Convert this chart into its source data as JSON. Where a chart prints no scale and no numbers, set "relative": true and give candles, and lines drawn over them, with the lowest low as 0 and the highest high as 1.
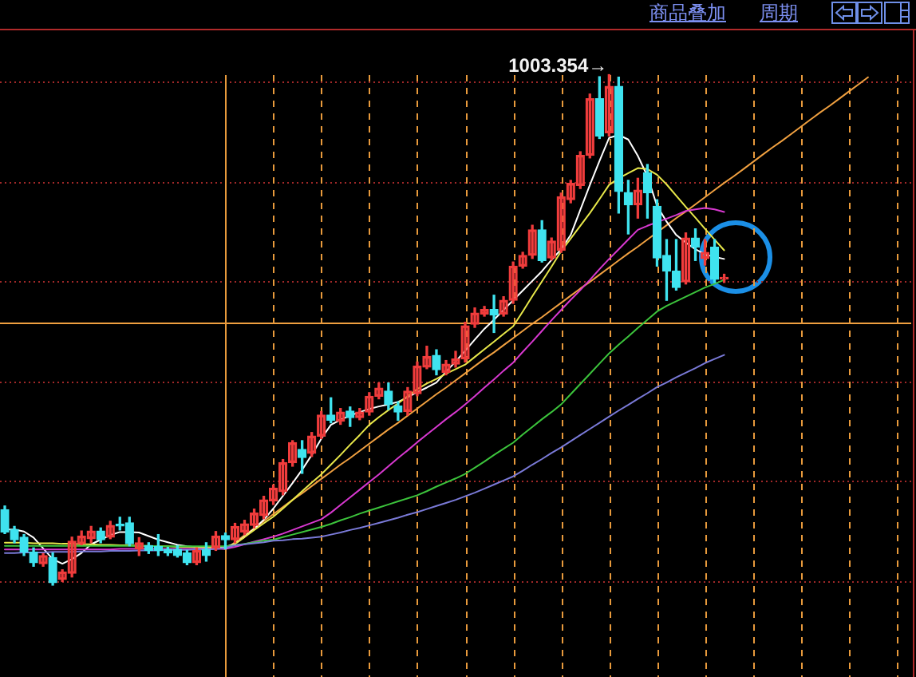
{
  "chart_data": {
    "type": "candlestick",
    "relative": true,
    "grid": "x",
    "categories": [
      null,
      null,
      null,
      null,
      null,
      null,
      null,
      null,
      null,
      null,
      null,
      null,
      null,
      null,
      null,
      null,
      null,
      null,
      null,
      null,
      null,
      null,
      null,
      null,
      null,
      null,
      null,
      null,
      null,
      null,
      null,
      null,
      null,
      null,
      null,
      null,
      null,
      null,
      null,
      null,
      null,
      null,
      null,
      null,
      null,
      null,
      null,
      null,
      null,
      null,
      null,
      null,
      null,
      null,
      null,
      null,
      null,
      null,
      null,
      null,
      null,
      null,
      null,
      null,
      null,
      null,
      null,
      null,
      null,
      null,
      null,
      null,
      null,
      null,
      null,
      null,
      null,
      null,
      null,
      null,
      null,
      null,
      null,
      null,
      null,
      null,
      null,
      null,
      null,
      null,
      null,
      null,
      null,
      null,
      null
    ],
    "ohlc": [
      [
        0.148,
        0.155,
        0.101,
        0.104
      ],
      [
        0.109,
        0.115,
        0.083,
        0.089
      ],
      [
        0.094,
        0.099,
        0.058,
        0.065
      ],
      [
        0.065,
        0.073,
        0.037,
        0.044
      ],
      [
        0.042,
        0.062,
        0.037,
        0.058
      ],
      [
        0.054,
        0.063,
        0,
        0.005
      ],
      [
        0.011,
        0.03,
        0.007,
        0.026
      ],
      [
        0.023,
        0.094,
        0.016,
        0.086
      ],
      [
        0.081,
        0.106,
        0.079,
        0.096
      ],
      [
        0.091,
        0.115,
        0.083,
        0.106
      ],
      [
        0.106,
        0.112,
        0.083,
        0.089
      ],
      [
        0.094,
        0.125,
        0.091,
        0.117
      ],
      [
        0.119,
        0.133,
        0.108,
        0.116
      ],
      [
        0.122,
        0.133,
        0.077,
        0.081
      ],
      [
        0.071,
        0.093,
        0.058,
        0.083
      ],
      [
        0.077,
        0.083,
        0.062,
        0.068
      ],
      [
        0.076,
        0.099,
        0.058,
        0.068
      ],
      [
        0.07,
        0.074,
        0.058,
        0.063
      ],
      [
        0.07,
        0.077,
        0.055,
        0.058
      ],
      [
        0.063,
        0.068,
        0.04,
        0.044
      ],
      [
        0.044,
        0.073,
        0.04,
        0.068
      ],
      [
        0.07,
        0.083,
        0.047,
        0.058
      ],
      [
        0.073,
        0.105,
        0.068,
        0.096
      ],
      [
        0.097,
        0.102,
        0.071,
        0.089
      ],
      [
        0.089,
        0.121,
        0.083,
        0.115
      ],
      [
        0.104,
        0.127,
        0.099,
        0.12
      ],
      [
        0.117,
        0.149,
        0.112,
        0.141
      ],
      [
        0.136,
        0.174,
        0.13,
        0.167
      ],
      [
        0.165,
        0.196,
        0.158,
        0.19
      ],
      [
        0.183,
        0.246,
        0.177,
        0.24
      ],
      [
        0.24,
        0.283,
        0.233,
        0.279
      ],
      [
        0.266,
        0.283,
        0.219,
        0.25
      ],
      [
        0.258,
        0.299,
        0.252,
        0.292
      ],
      [
        0.292,
        0.34,
        0.287,
        0.333
      ],
      [
        0.333,
        0.367,
        0.318,
        0.323
      ],
      [
        0.321,
        0.346,
        0.315,
        0.339
      ],
      [
        0.341,
        0.349,
        0.311,
        0.328
      ],
      [
        0.328,
        0.346,
        0.324,
        0.339
      ],
      [
        0.339,
        0.377,
        0.333,
        0.37
      ],
      [
        0.37,
        0.396,
        0.365,
        0.386
      ],
      [
        0.38,
        0.396,
        0.344,
        0.354
      ],
      [
        0.351,
        0.359,
        0.323,
        0.339
      ],
      [
        0.34,
        0.387,
        0.333,
        0.38
      ],
      [
        0.375,
        0.437,
        0.371,
        0.429
      ],
      [
        0.427,
        0.468,
        0.424,
        0.448
      ],
      [
        0.45,
        0.461,
        0.412,
        0.422
      ],
      [
        0.417,
        0.44,
        0.412,
        0.433
      ],
      [
        0.433,
        0.458,
        0.427,
        0.443
      ],
      [
        0.443,
        0.515,
        0.437,
        0.508
      ],
      [
        0.511,
        0.543,
        0.505,
        0.533
      ],
      [
        0.531,
        0.546,
        0.527,
        0.54
      ],
      [
        0.54,
        0.568,
        0.495,
        0.529
      ],
      [
        0.531,
        0.565,
        0.527,
        0.558
      ],
      [
        0.558,
        0.633,
        0.552,
        0.625
      ],
      [
        0.625,
        0.652,
        0.621,
        0.646
      ],
      [
        0.646,
        0.705,
        0.64,
        0.696
      ],
      [
        0.696,
        0.714,
        0.633,
        0.636
      ],
      [
        0.641,
        0.68,
        0.637,
        0.674
      ],
      [
        0.656,
        0.768,
        0.652,
        0.761
      ],
      [
        0.755,
        0.793,
        0.749,
        0.787
      ],
      [
        0.783,
        0.849,
        0.777,
        0.842
      ],
      [
        0.842,
        0.962,
        0.837,
        0.953
      ],
      [
        0.953,
        0.996,
        0.875,
        0.88
      ],
      [
        0.886,
        1,
        0.88,
        0.977
      ],
      [
        0.977,
        0.995,
        0.729,
        0.771
      ],
      [
        0.769,
        0.793,
        0.688,
        0.745
      ],
      [
        0.745,
        0.797,
        0.719,
        0.774
      ],
      [
        0.808,
        0.824,
        0.719,
        0.769
      ],
      [
        0.742,
        0.755,
        0.625,
        0.641
      ],
      [
        0.646,
        0.677,
        0.558,
        0.615
      ],
      [
        0.615,
        0.677,
        0.578,
        0.583
      ],
      [
        0.594,
        0.69,
        0.59,
        0.68
      ],
      [
        0.68,
        0.698,
        0.636,
        0.662
      ],
      [
        0.64,
        0.677,
        0.627,
        0.652
      ],
      [
        0.662,
        0.677,
        0.593,
        0.599
      ],
      [
        0.6,
        0.609,
        0.593,
        0.602
      ],
      null,
      null,
      null,
      null,
      null,
      null,
      null,
      null,
      null,
      null,
      null,
      null,
      null,
      null,
      null,
      null,
      null,
      null,
      null
    ],
    "colors": [
      "#3fe3ef",
      "#3fe3ef",
      "#3fe3ef",
      "#3fe3ef",
      "#f03c3c",
      "#3fe3ef",
      "#f03c3c",
      "#f03c3c",
      "#f03c3c",
      "#f03c3c",
      "#3fe3ef",
      "#f03c3c",
      "#3fe3ef",
      "#3fe3ef",
      "#f03c3c",
      "#3fe3ef",
      "#3fe3ef",
      "#3fe3ef",
      "#3fe3ef",
      "#3fe3ef",
      "#f03c3c",
      "#3fe3ef",
      "#f03c3c",
      "#3fe3ef",
      "#f03c3c",
      "#f03c3c",
      "#f03c3c",
      "#f03c3c",
      "#f03c3c",
      "#f03c3c",
      "#f03c3c",
      "#3fe3ef",
      "#f03c3c",
      "#f03c3c",
      "#3fe3ef",
      "#f03c3c",
      "#3fe3ef",
      "#f03c3c",
      "#f03c3c",
      "#f03c3c",
      "#3fe3ef",
      "#3fe3ef",
      "#f03c3c",
      "#f03c3c",
      "#f03c3c",
      "#3fe3ef",
      "#f03c3c",
      "#f03c3c",
      "#f03c3c",
      "#f03c3c",
      "#f03c3c",
      "#3fe3ef",
      "#f03c3c",
      "#f03c3c",
      "#f03c3c",
      "#f03c3c",
      "#3fe3ef",
      "#f03c3c",
      "#f03c3c",
      "#f03c3c",
      "#f03c3c",
      "#f03c3c",
      "#3fe3ef",
      "#f03c3c",
      "#3fe3ef",
      "#3fe3ef",
      "#f03c3c",
      "#3fe3ef",
      "#3fe3ef",
      "#3fe3ef",
      "#3fe3ef",
      "#f03c3c",
      "#3fe3ef",
      "#f03c3c",
      "#3fe3ef",
      "#f03c3c",
      null,
      null,
      null,
      null,
      null,
      null,
      null,
      null,
      null,
      null,
      null,
      null,
      null,
      null,
      null,
      null,
      null,
      null,
      null
    ],
    "series": [
      {
        "type": "line",
        "color": "#7a7ad8",
        "values": [
          0.063,
          0.063,
          0.064,
          0.064,
          0.064,
          0.065,
          0.065,
          0.065,
          0.066,
          0.066,
          0.066,
          0.067,
          0.067,
          0.067,
          0.068,
          0.068,
          0.068,
          0.069,
          0.069,
          0.069,
          0.07,
          0.07,
          0.071,
          0.073,
          0.078,
          0.08,
          0.082,
          0.084,
          0.087,
          0.088,
          0.09,
          0.091,
          0.093,
          0.095,
          0.099,
          0.103,
          0.108,
          0.112,
          0.117,
          0.122,
          0.127,
          0.132,
          0.138,
          0.143,
          0.149,
          0.155,
          0.161,
          0.167,
          0.174,
          0.181,
          0.189,
          0.197,
          0.205,
          0.213,
          0.224,
          0.236,
          0.247,
          0.259,
          0.27,
          0.282,
          0.294,
          0.306,
          0.318,
          0.33,
          0.342,
          0.353,
          0.365,
          0.376,
          0.388,
          0.397,
          0.407,
          0.416,
          0.425,
          0.435,
          0.443,
          0.451,
          null,
          null,
          null,
          null,
          null,
          null,
          null,
          null,
          null,
          null,
          null,
          null,
          null,
          null,
          null,
          null,
          null,
          null,
          null
        ]
      },
      {
        "type": "line",
        "color": "#3cc43c",
        "values": [
          0.077,
          0.077,
          0.077,
          0.077,
          0.077,
          0.077,
          0.077,
          0.077,
          0.077,
          0.077,
          0.077,
          0.077,
          0.077,
          0.077,
          0.077,
          0.077,
          0.076,
          0.076,
          0.076,
          0.076,
          0.076,
          0.076,
          0.076,
          0.076,
          0.078,
          0.081,
          0.084,
          0.087,
          0.089,
          0.094,
          0.099,
          0.104,
          0.109,
          0.114,
          0.12,
          0.127,
          0.133,
          0.14,
          0.146,
          0.152,
          0.158,
          0.164,
          0.17,
          0.176,
          0.184,
          0.193,
          0.201,
          0.209,
          0.218,
          0.23,
          0.242,
          0.255,
          0.267,
          0.279,
          0.295,
          0.31,
          0.325,
          0.339,
          0.354,
          0.374,
          0.394,
          0.414,
          0.434,
          0.454,
          0.471,
          0.487,
          0.504,
          0.52,
          0.536,
          0.547,
          0.556,
          0.565,
          0.574,
          0.583,
          0.59,
          0.598,
          null,
          null,
          null,
          null,
          null,
          null,
          null,
          null,
          null,
          null,
          null,
          null,
          null,
          null,
          null,
          null,
          null,
          null,
          null
        ]
      },
      {
        "type": "line",
        "color": "#d838d0",
        "values": [
          0.07,
          0.07,
          0.07,
          0.07,
          0.07,
          0.07,
          0.07,
          0.07,
          0.07,
          0.07,
          0.07,
          0.07,
          0.071,
          0.071,
          0.071,
          0.071,
          0.071,
          0.071,
          0.071,
          0.071,
          0.071,
          0.071,
          0.071,
          0.071,
          0.075,
          0.08,
          0.085,
          0.09,
          0.095,
          0.101,
          0.108,
          0.115,
          0.122,
          0.129,
          0.142,
          0.157,
          0.172,
          0.187,
          0.202,
          0.217,
          0.233,
          0.249,
          0.264,
          0.28,
          0.295,
          0.31,
          0.325,
          0.339,
          0.354,
          0.37,
          0.387,
          0.403,
          0.42,
          0.436,
          0.457,
          0.477,
          0.498,
          0.519,
          0.539,
          0.559,
          0.578,
          0.598,
          0.619,
          0.639,
          0.658,
          0.677,
          0.696,
          0.704,
          0.711,
          0.718,
          0.725,
          0.733,
          0.736,
          0.739,
          0.736,
          0.731,
          null,
          null,
          null,
          null,
          null,
          null,
          null,
          null,
          null,
          null,
          null,
          null,
          null,
          null,
          null,
          null,
          null,
          null,
          null
        ]
      },
      {
        "type": "line",
        "color": "#e8e84a",
        "values": [
          0.083,
          0.083,
          0.083,
          0.082,
          0.082,
          0.082,
          0.081,
          0.081,
          0.08,
          0.08,
          0.079,
          0.079,
          0.078,
          0.078,
          0.077,
          0.077,
          0.076,
          0.076,
          0.075,
          0.075,
          0.074,
          0.074,
          0.073,
          0.071,
          0.081,
          0.094,
          0.108,
          0.121,
          0.134,
          0.15,
          0.167,
          0.184,
          0.201,
          0.217,
          0.236,
          0.255,
          0.275,
          0.294,
          0.314,
          0.329,
          0.343,
          0.356,
          0.37,
          0.384,
          0.395,
          0.404,
          0.414,
          0.423,
          0.432,
          0.447,
          0.462,
          0.477,
          0.492,
          0.507,
          0.536,
          0.566,
          0.595,
          0.624,
          0.654,
          0.679,
          0.704,
          0.729,
          0.756,
          0.784,
          0.797,
          0.807,
          0.817,
          0.815,
          0.804,
          0.785,
          0.763,
          0.741,
          0.72,
          0.698,
          0.677,
          0.656,
          null,
          null,
          null,
          null,
          null,
          null,
          null,
          null,
          null,
          null,
          null,
          null,
          null,
          null,
          null,
          null,
          null,
          null,
          null
        ]
      },
      {
        "type": "line",
        "color": "#ffffff",
        "values": [
          0.109,
          0.109,
          0.105,
          0.093,
          0.072,
          0.051,
          0.042,
          0.051,
          0.063,
          0.08,
          0.089,
          0.098,
          0.104,
          0.104,
          0.103,
          0.096,
          0.089,
          0.084,
          0.079,
          0.076,
          0.074,
          0.073,
          0.073,
          0.075,
          0.081,
          0.095,
          0.11,
          0.128,
          0.15,
          0.175,
          0.2,
          0.226,
          0.255,
          0.287,
          0.314,
          0.324,
          0.332,
          0.339,
          0.345,
          0.35,
          0.354,
          0.359,
          0.368,
          0.378,
          0.387,
          0.397,
          0.418,
          0.438,
          0.459,
          0.481,
          0.502,
          0.52,
          0.539,
          0.558,
          0.577,
          0.596,
          0.615,
          0.637,
          0.658,
          0.686,
          0.735,
          0.784,
          0.831,
          0.876,
          0.882,
          0.873,
          0.841,
          0.801,
          0.743,
          0.712,
          0.686,
          0.671,
          0.658,
          0.648,
          0.643,
          0.639,
          null,
          null,
          null,
          null,
          null,
          null,
          null,
          null,
          null,
          null,
          null,
          null,
          null,
          null,
          null,
          null,
          null,
          null,
          null
        ]
      },
      {
        "type": "line",
        "color": "#f0a040",
        "values": [
          null,
          null,
          null,
          null,
          null,
          null,
          null,
          null,
          null,
          null,
          null,
          null,
          null,
          null,
          null,
          null,
          null,
          null,
          null,
          null,
          null,
          null,
          null,
          0.07,
          0.084,
          0.098,
          0.111,
          0.125,
          0.139,
          0.153,
          0.167,
          0.18,
          0.194,
          0.208,
          0.222,
          0.236,
          0.249,
          0.263,
          0.277,
          0.291,
          0.305,
          0.318,
          0.332,
          0.346,
          0.36,
          0.374,
          0.387,
          0.401,
          0.415,
          0.429,
          0.443,
          0.456,
          0.47,
          0.484,
          0.498,
          0.512,
          0.525,
          0.539,
          0.553,
          0.567,
          0.581,
          0.594,
          0.608,
          0.622,
          0.636,
          0.65,
          0.663,
          0.677,
          0.691,
          0.705,
          0.719,
          0.732,
          0.746,
          0.76,
          0.774,
          0.788,
          0.801,
          0.815,
          0.829,
          0.843,
          0.857,
          0.87,
          0.884,
          0.898,
          0.912,
          0.926,
          0.939,
          0.953,
          0.967,
          0.981,
          0.995,
          null,
          null,
          null,
          null
        ]
      }
    ],
    "ref_lines": [
      {
        "axis": "y",
        "value": 0.515,
        "color": "#f0a040"
      },
      {
        "axis": "y",
        "value": 0.008,
        "color": "#a02828",
        "line_style": "dotted"
      },
      {
        "axis": "y",
        "value": 0.205,
        "color": "#a02828",
        "line_style": "dotted"
      },
      {
        "axis": "y",
        "value": 0.399,
        "color": "#a02828",
        "line_style": "dotted"
      },
      {
        "axis": "y",
        "value": 0.596,
        "color": "#a02828",
        "line_style": "dotted"
      },
      {
        "axis": "y",
        "value": 0.79,
        "color": "#a02828",
        "line_style": "dotted"
      },
      {
        "axis": "y",
        "value": 0.987,
        "color": "#a02828",
        "line_style": "dotted"
      }
    ],
    "annotations": [
      "商品叠加",
      "周期",
      "1003.354→"
    ]
  }
}
